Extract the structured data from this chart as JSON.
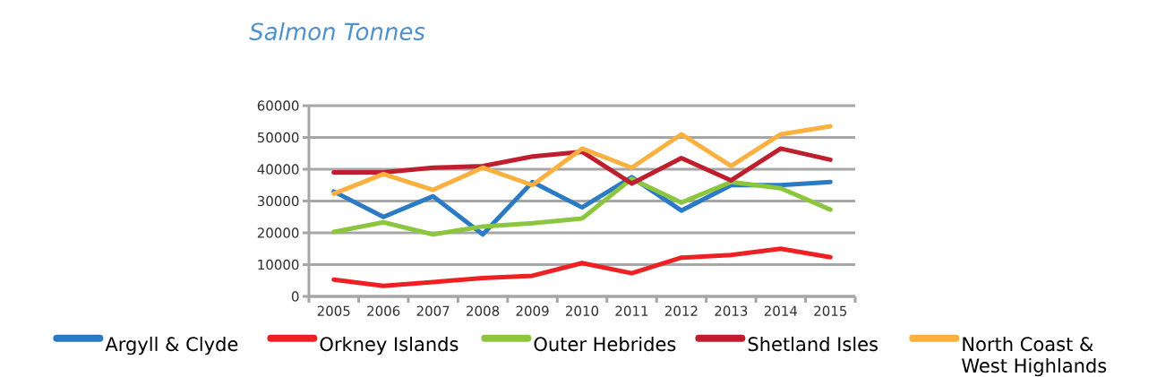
{
  "chart_data": {
    "type": "line",
    "title": "Salmon Tonnes",
    "categories": [
      "2005",
      "2006",
      "2007",
      "2008",
      "2009",
      "2010",
      "2011",
      "2012",
      "2013",
      "2014",
      "2015"
    ],
    "series": [
      {
        "name": "Argyll & Clyde",
        "color": "#2a7bc4",
        "values": [
          33000,
          25000,
          31500,
          19500,
          36000,
          28000,
          37500,
          27000,
          35000,
          35000,
          36000
        ]
      },
      {
        "name": "Orkney Islands",
        "color": "#ee2024",
        "values": [
          5300,
          3300,
          4500,
          5800,
          6500,
          10500,
          7300,
          12200,
          13000,
          15000,
          12300
        ]
      },
      {
        "name": "Outer Hebrides",
        "color": "#8cc63f",
        "values": [
          20300,
          23300,
          19500,
          22000,
          23000,
          24500,
          37000,
          29500,
          36000,
          34000,
          27300
        ]
      },
      {
        "name": "Shetland Isles",
        "color": "#be1e2d",
        "values": [
          39000,
          39000,
          40500,
          41000,
          44000,
          45500,
          35500,
          43500,
          36500,
          46500,
          43000
        ]
      },
      {
        "name": "North Coast & West Highlands",
        "color": "#fbb040",
        "values": [
          32300,
          38500,
          33500,
          40500,
          35000,
          46500,
          40500,
          51000,
          41000,
          51000,
          53500
        ]
      }
    ],
    "ylim": [
      0,
      60000
    ],
    "yticks": [
      0,
      10000,
      20000,
      30000,
      40000,
      50000,
      60000
    ],
    "grid": "y",
    "legend": "bottom"
  }
}
